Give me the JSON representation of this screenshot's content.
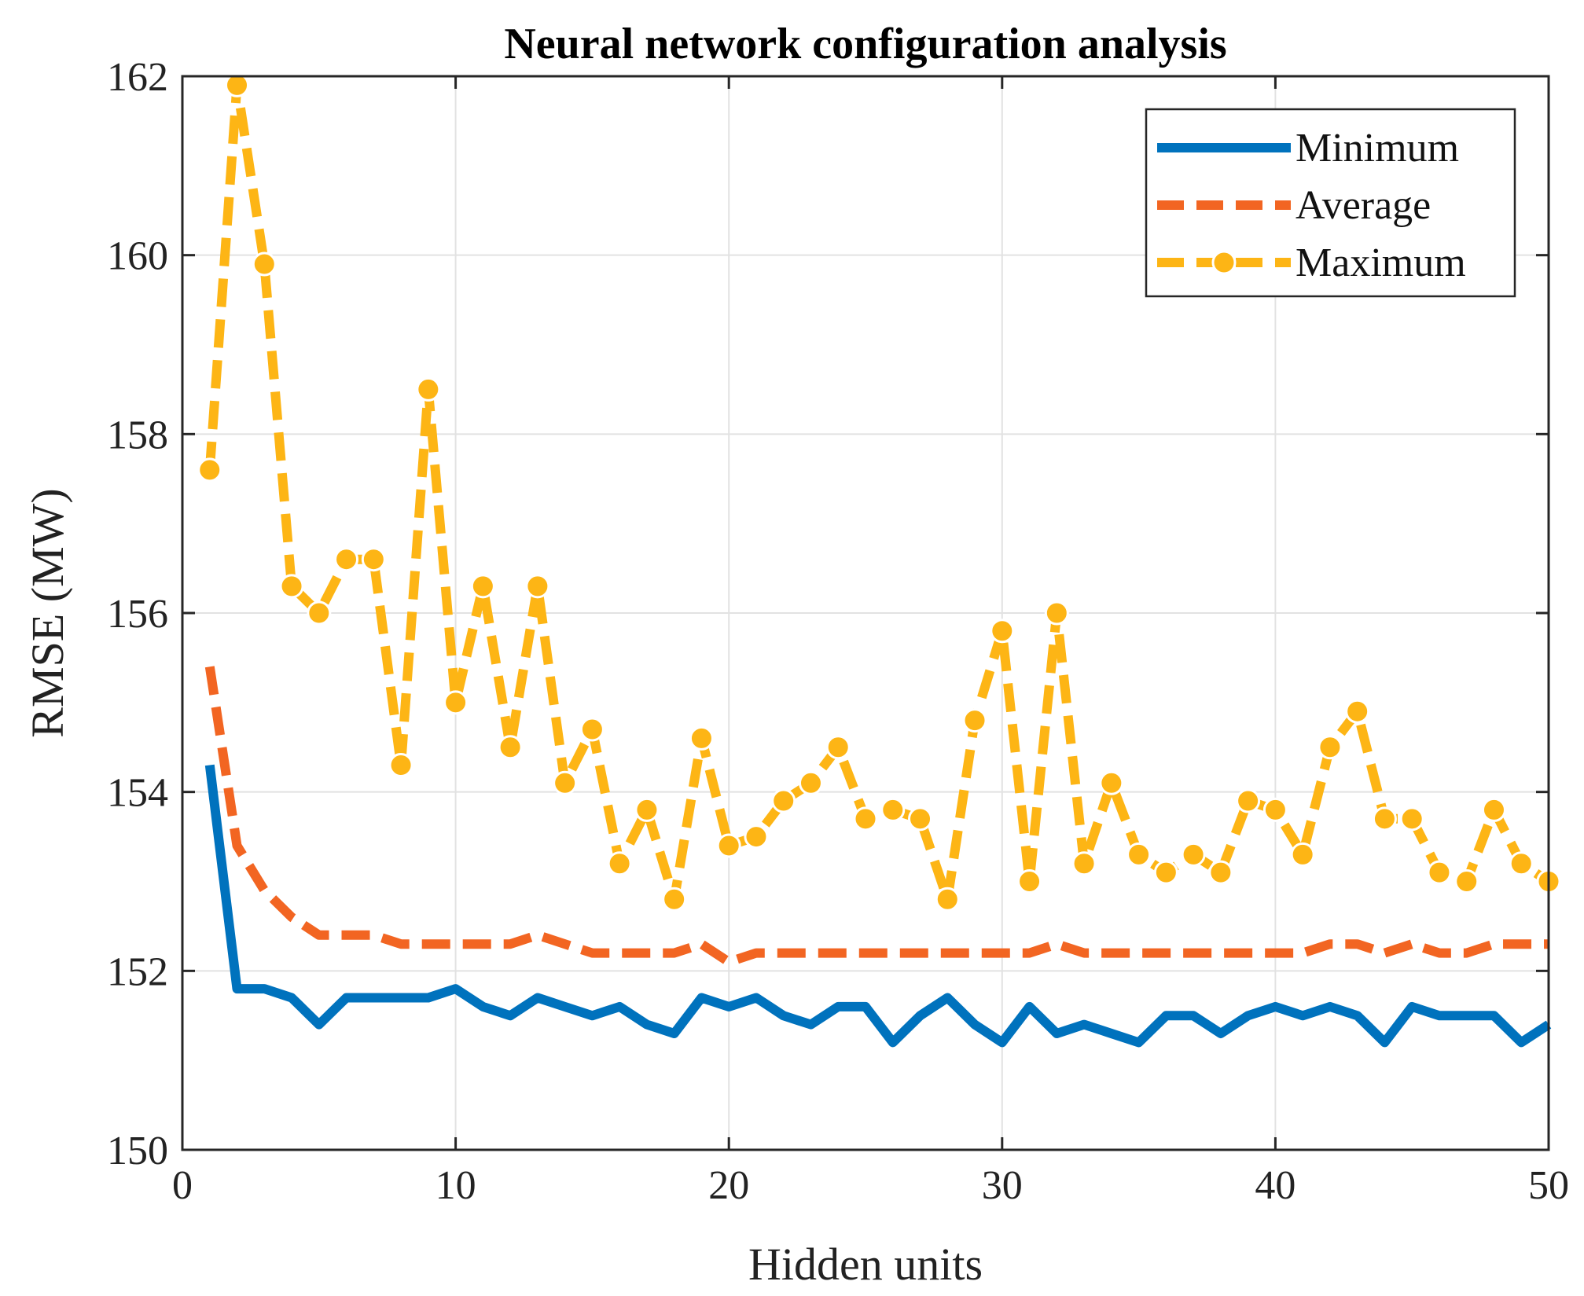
{
  "chart_data": {
    "type": "line",
    "title": "Neural network configuration analysis",
    "xlabel": "Hidden units",
    "ylabel": "RMSE (MW)",
    "xlim": [
      0,
      50
    ],
    "ylim": [
      150,
      162
    ],
    "xticks": [
      0,
      10,
      20,
      30,
      40,
      50
    ],
    "yticks": [
      150,
      152,
      154,
      156,
      158,
      160,
      162
    ],
    "grid": true,
    "legend_position": "top-right",
    "x": [
      1,
      2,
      3,
      4,
      5,
      6,
      7,
      8,
      9,
      10,
      11,
      12,
      13,
      14,
      15,
      16,
      17,
      18,
      19,
      20,
      21,
      22,
      23,
      24,
      25,
      26,
      27,
      28,
      29,
      30,
      31,
      32,
      33,
      34,
      35,
      36,
      37,
      38,
      39,
      40,
      41,
      42,
      43,
      44,
      45,
      46,
      47,
      48,
      49,
      50
    ],
    "series": [
      {
        "name": "Minimum",
        "color": "#0072BD",
        "style": "solid",
        "marker": "none",
        "values": [
          154.3,
          151.8,
          151.8,
          151.7,
          151.4,
          151.7,
          151.7,
          151.7,
          151.7,
          151.8,
          151.6,
          151.5,
          151.7,
          151.6,
          151.5,
          151.6,
          151.4,
          151.3,
          151.7,
          151.6,
          151.7,
          151.5,
          151.4,
          151.6,
          151.6,
          151.2,
          151.5,
          151.7,
          151.4,
          151.2,
          151.6,
          151.3,
          151.4,
          151.3,
          151.2,
          151.5,
          151.5,
          151.3,
          151.5,
          151.6,
          151.5,
          151.6,
          151.5,
          151.2,
          151.6,
          151.5,
          151.5,
          151.5,
          151.2,
          151.4
        ]
      },
      {
        "name": "Average",
        "color": "#F26522",
        "style": "dashed",
        "marker": "none",
        "values": [
          155.4,
          153.4,
          152.9,
          152.6,
          152.4,
          152.4,
          152.4,
          152.3,
          152.3,
          152.3,
          152.3,
          152.3,
          152.4,
          152.3,
          152.2,
          152.2,
          152.2,
          152.2,
          152.3,
          152.1,
          152.2,
          152.2,
          152.2,
          152.2,
          152.2,
          152.2,
          152.2,
          152.2,
          152.2,
          152.2,
          152.2,
          152.3,
          152.2,
          152.2,
          152.2,
          152.2,
          152.2,
          152.2,
          152.2,
          152.2,
          152.2,
          152.3,
          152.3,
          152.2,
          152.3,
          152.2,
          152.2,
          152.3,
          152.3,
          152.3
        ]
      },
      {
        "name": "Maximum",
        "color": "#FDB515",
        "style": "dashed",
        "marker": "circle",
        "values": [
          157.6,
          161.9,
          159.9,
          156.3,
          156.0,
          156.6,
          156.6,
          154.3,
          158.5,
          155.0,
          156.3,
          154.5,
          156.3,
          154.1,
          154.7,
          153.2,
          153.8,
          152.8,
          154.6,
          153.4,
          153.5,
          153.9,
          154.1,
          154.5,
          153.7,
          153.8,
          153.7,
          152.8,
          154.8,
          155.8,
          153.0,
          156.0,
          153.2,
          154.1,
          153.3,
          153.1,
          153.3,
          153.1,
          153.9,
          153.8,
          153.3,
          154.5,
          154.9,
          153.7,
          153.7,
          153.1,
          153.0,
          153.8,
          153.2,
          153.0
        ]
      }
    ]
  }
}
